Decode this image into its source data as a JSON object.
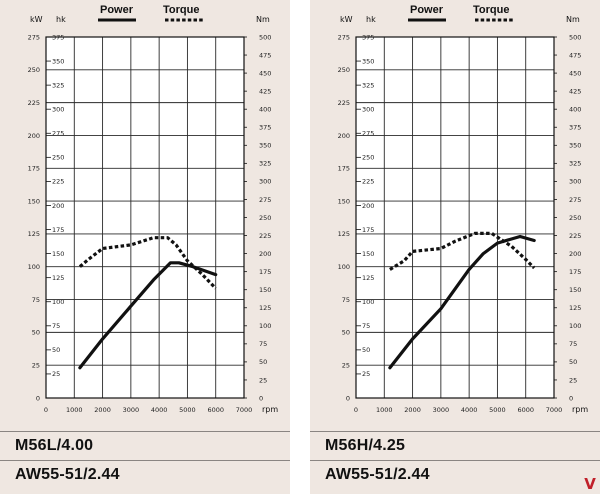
{
  "chart_data": [
    {
      "type": "line",
      "engine": "M56L/4.00",
      "transmission": "AW55-51/2.44",
      "units": {
        "kw": "kW",
        "hk": "hk",
        "nm": "Nm",
        "rpm": "rpm"
      },
      "legend": {
        "power": "Power",
        "torque": "Torque",
        "placement": "top"
      },
      "xlim": [
        0,
        7000
      ],
      "x_ticks": [
        0,
        1000,
        2000,
        3000,
        4000,
        5000,
        6000,
        7000
      ],
      "kw_ticks": [
        0,
        25,
        50,
        75,
        100,
        125,
        150,
        175,
        200,
        225,
        250,
        275
      ],
      "hk_ticks": [
        25,
        50,
        75,
        100,
        125,
        150,
        175,
        200,
        225,
        250,
        275,
        300,
        325,
        350,
        375
      ],
      "nm_ticks": [
        0,
        25,
        50,
        75,
        100,
        125,
        150,
        175,
        200,
        225,
        250,
        275,
        300,
        325,
        350,
        375,
        400,
        425,
        450,
        475,
        500
      ],
      "series": [
        {
          "name": "Power",
          "axis": "kw",
          "style": "solid",
          "x": [
            1200,
            2000,
            3000,
            3800,
            4400,
            4700,
            5200,
            6000
          ],
          "y": [
            23,
            45,
            70,
            90,
            103,
            103,
            100,
            94
          ]
        },
        {
          "name": "Torque",
          "axis": "nm",
          "style": "dashed",
          "x": [
            1200,
            1500,
            2000,
            3000,
            3800,
            4300,
            4600,
            5000,
            5500,
            6000
          ],
          "y": [
            182,
            192,
            207,
            212,
            222,
            222,
            212,
            190,
            172,
            152
          ]
        }
      ]
    },
    {
      "type": "line",
      "engine": "M56H/4.25",
      "transmission": "AW55-51/2.44",
      "units": {
        "kw": "kW",
        "hk": "hk",
        "nm": "Nm",
        "rpm": "rpm"
      },
      "legend": {
        "power": "Power",
        "torque": "Torque",
        "placement": "top"
      },
      "xlim": [
        0,
        7000
      ],
      "x_ticks": [
        0,
        1000,
        2000,
        3000,
        4000,
        5000,
        6000,
        7000
      ],
      "kw_ticks": [
        0,
        25,
        50,
        75,
        100,
        125,
        150,
        175,
        200,
        225,
        250,
        275
      ],
      "hk_ticks": [
        25,
        50,
        75,
        100,
        125,
        150,
        175,
        200,
        225,
        250,
        275,
        300,
        325,
        350,
        375
      ],
      "nm_ticks": [
        0,
        25,
        50,
        75,
        100,
        125,
        150,
        175,
        200,
        225,
        250,
        275,
        300,
        325,
        350,
        375,
        400,
        425,
        450,
        475,
        500
      ],
      "series": [
        {
          "name": "Power",
          "axis": "kw",
          "style": "solid",
          "x": [
            1200,
            2000,
            3000,
            4000,
            4500,
            5000,
            5800,
            6300
          ],
          "y": [
            23,
            45,
            68,
            98,
            110,
            118,
            123,
            120
          ]
        },
        {
          "name": "Torque",
          "axis": "nm",
          "style": "dashed",
          "x": [
            1200,
            1700,
            2000,
            3000,
            3500,
            4200,
            4800,
            5500,
            6000,
            6300
          ],
          "y": [
            178,
            190,
            203,
            207,
            217,
            228,
            228,
            210,
            192,
            180
          ]
        }
      ]
    }
  ],
  "logo_text": "V"
}
